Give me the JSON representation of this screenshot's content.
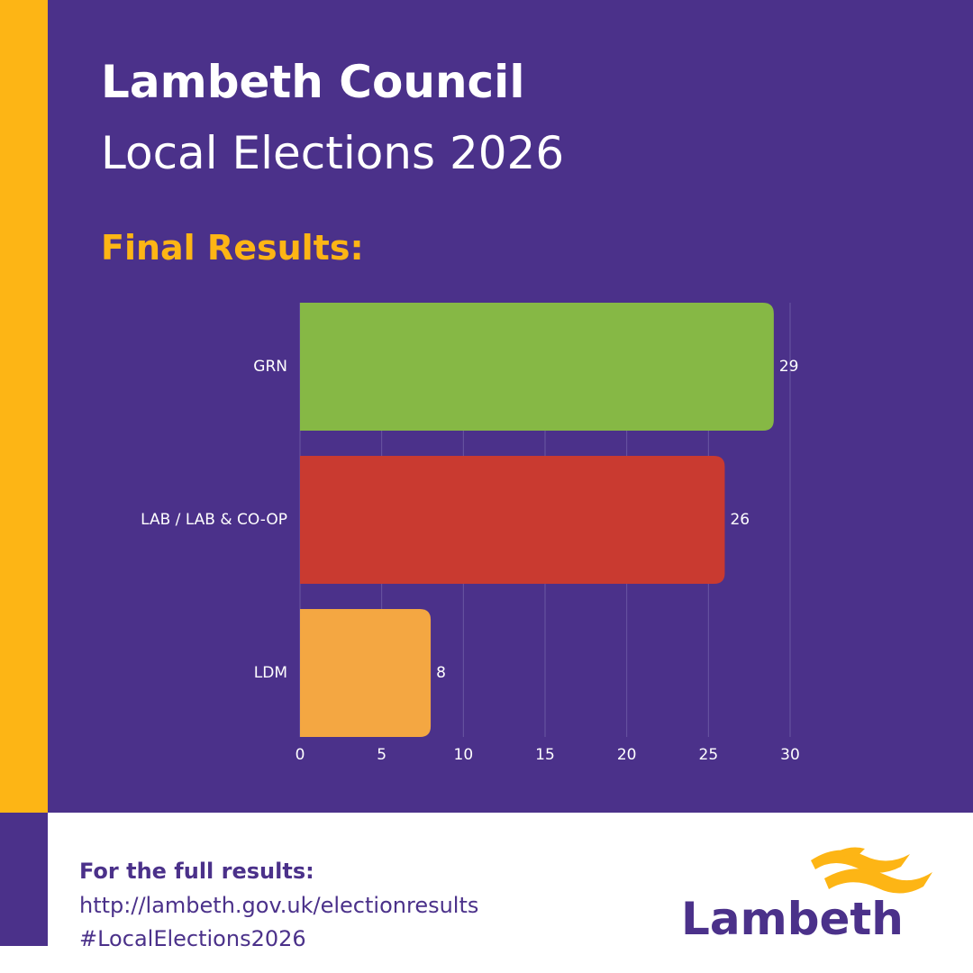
{
  "header": {
    "title": "Lambeth Council",
    "subtitle": "Local Elections 2026",
    "heading": "Final Results:"
  },
  "chart_data": {
    "type": "hbar",
    "categories": [
      "GRN",
      "LAB / LAB & CO-OP",
      "LDM"
    ],
    "values": [
      29,
      26,
      8
    ],
    "colors": [
      "#86b845",
      "#c93a30",
      "#f4a742"
    ],
    "xlim": [
      0,
      30
    ],
    "xticks": [
      0,
      5,
      10,
      15,
      20,
      25,
      30
    ],
    "grid": true
  },
  "footer": {
    "prompt": "For the full results:",
    "url": "http://lambeth.gov.uk/electionresults",
    "hashtag": "#LocalElections2026",
    "logo": "Lambeth"
  }
}
